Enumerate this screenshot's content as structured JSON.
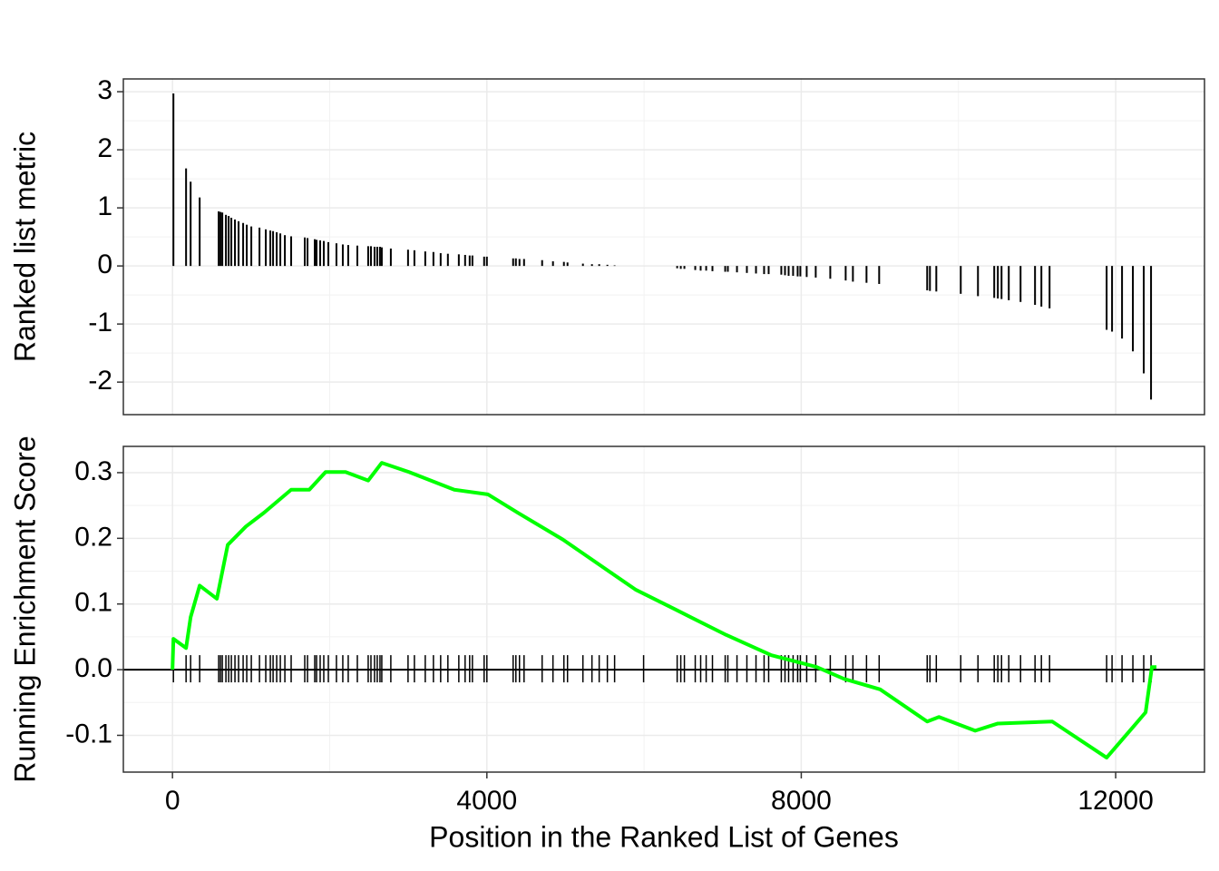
{
  "chart_data": [
    {
      "type": "bar",
      "ylabel": "Ranked list metric",
      "color": "#000000",
      "grid": true,
      "xlim": [
        -625,
        13130
      ],
      "xticks": [
        0,
        4000,
        8000,
        12000
      ],
      "ylim": [
        -2.56,
        3.22
      ],
      "yticks": [
        -2,
        -1,
        0,
        1,
        2,
        3
      ],
      "x": [
        12,
        173,
        231,
        346,
        588,
        611,
        634,
        680,
        715,
        749,
        795,
        841,
        899,
        945,
        1003,
        1107,
        1187,
        1245,
        1280,
        1326,
        1372,
        1430,
        1510,
        1683,
        1718,
        1810,
        1833,
        1879,
        1925,
        1983,
        2086,
        2167,
        2236,
        2352,
        2490,
        2525,
        2571,
        2605,
        2640,
        2663,
        2778,
        2997,
        3078,
        3216,
        3320,
        3412,
        3504,
        3643,
        3723,
        3781,
        3816,
        3965,
        4000,
        4334,
        4369,
        4415,
        4473,
        4703,
        4841,
        4980,
        5026,
        5222,
        5337,
        5429,
        5533,
        5625,
        5994,
        6421,
        6467,
        6513,
        6651,
        6720,
        6790,
        6870,
        7032,
        7066,
        7182,
        7308,
        7424,
        7527,
        7585,
        7746,
        7793,
        7839,
        7896,
        7954,
        7988,
        8069,
        8184,
        8369,
        8565,
        8657,
        8830,
        8991,
        9602,
        9637,
        9718,
        10029,
        10248,
        10455,
        10501,
        10548,
        10640,
        10790,
        10974,
        11055,
        11159,
        11885,
        11954,
        12081,
        12219,
        12357,
        12450
      ],
      "values": [
        2.97,
        1.68,
        1.45,
        1.18,
        0.94,
        0.93,
        0.92,
        0.88,
        0.86,
        0.83,
        0.8,
        0.77,
        0.74,
        0.71,
        0.68,
        0.66,
        0.63,
        0.61,
        0.6,
        0.58,
        0.56,
        0.53,
        0.51,
        0.49,
        0.48,
        0.46,
        0.45,
        0.44,
        0.43,
        0.41,
        0.39,
        0.37,
        0.36,
        0.35,
        0.34,
        0.34,
        0.33,
        0.33,
        0.33,
        0.32,
        0.3,
        0.28,
        0.27,
        0.25,
        0.24,
        0.22,
        0.21,
        0.2,
        0.19,
        0.18,
        0.18,
        0.16,
        0.16,
        0.13,
        0.13,
        0.12,
        0.12,
        0.1,
        0.08,
        0.07,
        0.06,
        0.04,
        0.03,
        0.03,
        0.02,
        0.01,
        0.0,
        -0.04,
        -0.05,
        -0.05,
        -0.07,
        -0.08,
        -0.08,
        -0.09,
        -0.1,
        -0.1,
        -0.11,
        -0.12,
        -0.13,
        -0.14,
        -0.14,
        -0.15,
        -0.16,
        -0.17,
        -0.17,
        -0.18,
        -0.18,
        -0.19,
        -0.2,
        -0.22,
        -0.25,
        -0.27,
        -0.29,
        -0.31,
        -0.42,
        -0.43,
        -0.44,
        -0.48,
        -0.52,
        -0.55,
        -0.56,
        -0.57,
        -0.59,
        -0.62,
        -0.67,
        -0.7,
        -0.73,
        -1.1,
        -1.13,
        -1.25,
        -1.47,
        -1.85,
        -2.3
      ]
    },
    {
      "type": "line",
      "ylabel": "Running Enrichment Score",
      "xlabel": "Position in the Ranked List of Genes",
      "color": "#00ff00",
      "grid": true,
      "xlim": [
        -625,
        13130
      ],
      "xticks": [
        0,
        4000,
        8000,
        12000
      ],
      "ylim": [
        -0.156,
        0.34
      ],
      "yticks": [
        -0.1,
        {
          "value": 0,
          "label": "0.0"
        },
        0.1,
        0.2,
        0.3
      ],
      "x": [
        0,
        12,
        173,
        231,
        346,
        565,
        703,
        934,
        1164,
        1510,
        1741,
        1948,
        2202,
        2490,
        2663,
        3009,
        3585,
        4012,
        4392,
        4968,
        5890,
        6409,
        7043,
        7620,
        8196,
        8542,
        9003,
        9602,
        9752,
        10213,
        10501,
        11193,
        11885,
        12231,
        12381,
        12461,
        12519
      ],
      "values": [
        0,
        0.047,
        0.033,
        0.08,
        0.128,
        0.108,
        0.19,
        0.218,
        0.239,
        0.274,
        0.274,
        0.301,
        0.301,
        0.288,
        0.315,
        0.301,
        0.274,
        0.267,
        0.239,
        0.198,
        0.122,
        0.091,
        0.053,
        0.022,
        0.004,
        -0.014,
        -0.03,
        -0.079,
        -0.072,
        -0.093,
        -0.082,
        -0.079,
        -0.134,
        -0.086,
        -0.065,
        0.004,
        0.004
      ]
    }
  ]
}
